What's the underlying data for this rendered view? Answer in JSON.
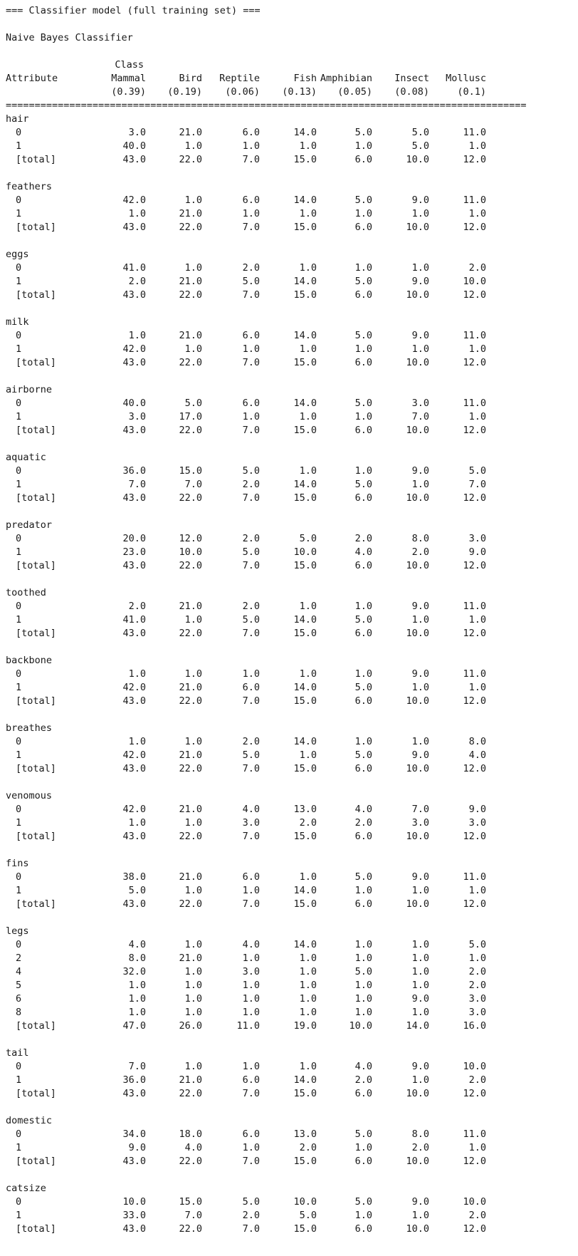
{
  "header": {
    "title": "=== Classifier model (full training set) ===",
    "model_name": "Naive Bayes Classifier",
    "class_label": "Class",
    "attribute_label": "Attribute",
    "separator": "=========================================================================================="
  },
  "classes": [
    {
      "name": "Mammal",
      "prior": "(0.39)"
    },
    {
      "name": "Bird",
      "prior": "(0.19)"
    },
    {
      "name": "Reptile",
      "prior": "(0.06)"
    },
    {
      "name": "Fish",
      "prior": "(0.13)"
    },
    {
      "name": "Amphibian",
      "prior": "(0.05)"
    },
    {
      "name": "Insect",
      "prior": "(0.08)"
    },
    {
      "name": "Mollusc",
      "prior": "(0.1)"
    }
  ],
  "attributes": [
    {
      "name": "hair",
      "rows": [
        {
          "label": "0",
          "values": [
            "3.0",
            "21.0",
            "6.0",
            "14.0",
            "5.0",
            "5.0",
            "11.0"
          ]
        },
        {
          "label": "1",
          "values": [
            "40.0",
            "1.0",
            "1.0",
            "1.0",
            "1.0",
            "5.0",
            "1.0"
          ]
        },
        {
          "label": "[total]",
          "values": [
            "43.0",
            "22.0",
            "7.0",
            "15.0",
            "6.0",
            "10.0",
            "12.0"
          ]
        }
      ]
    },
    {
      "name": "feathers",
      "rows": [
        {
          "label": "0",
          "values": [
            "42.0",
            "1.0",
            "6.0",
            "14.0",
            "5.0",
            "9.0",
            "11.0"
          ]
        },
        {
          "label": "1",
          "values": [
            "1.0",
            "21.0",
            "1.0",
            "1.0",
            "1.0",
            "1.0",
            "1.0"
          ]
        },
        {
          "label": "[total]",
          "values": [
            "43.0",
            "22.0",
            "7.0",
            "15.0",
            "6.0",
            "10.0",
            "12.0"
          ]
        }
      ]
    },
    {
      "name": "eggs",
      "rows": [
        {
          "label": "0",
          "values": [
            "41.0",
            "1.0",
            "2.0",
            "1.0",
            "1.0",
            "1.0",
            "2.0"
          ]
        },
        {
          "label": "1",
          "values": [
            "2.0",
            "21.0",
            "5.0",
            "14.0",
            "5.0",
            "9.0",
            "10.0"
          ]
        },
        {
          "label": "[total]",
          "values": [
            "43.0",
            "22.0",
            "7.0",
            "15.0",
            "6.0",
            "10.0",
            "12.0"
          ]
        }
      ]
    },
    {
      "name": "milk",
      "rows": [
        {
          "label": "0",
          "values": [
            "1.0",
            "21.0",
            "6.0",
            "14.0",
            "5.0",
            "9.0",
            "11.0"
          ]
        },
        {
          "label": "1",
          "values": [
            "42.0",
            "1.0",
            "1.0",
            "1.0",
            "1.0",
            "1.0",
            "1.0"
          ]
        },
        {
          "label": "[total]",
          "values": [
            "43.0",
            "22.0",
            "7.0",
            "15.0",
            "6.0",
            "10.0",
            "12.0"
          ]
        }
      ]
    },
    {
      "name": "airborne",
      "rows": [
        {
          "label": "0",
          "values": [
            "40.0",
            "5.0",
            "6.0",
            "14.0",
            "5.0",
            "3.0",
            "11.0"
          ]
        },
        {
          "label": "1",
          "values": [
            "3.0",
            "17.0",
            "1.0",
            "1.0",
            "1.0",
            "7.0",
            "1.0"
          ]
        },
        {
          "label": "[total]",
          "values": [
            "43.0",
            "22.0",
            "7.0",
            "15.0",
            "6.0",
            "10.0",
            "12.0"
          ]
        }
      ]
    },
    {
      "name": "aquatic",
      "rows": [
        {
          "label": "0",
          "values": [
            "36.0",
            "15.0",
            "5.0",
            "1.0",
            "1.0",
            "9.0",
            "5.0"
          ]
        },
        {
          "label": "1",
          "values": [
            "7.0",
            "7.0",
            "2.0",
            "14.0",
            "5.0",
            "1.0",
            "7.0"
          ]
        },
        {
          "label": "[total]",
          "values": [
            "43.0",
            "22.0",
            "7.0",
            "15.0",
            "6.0",
            "10.0",
            "12.0"
          ]
        }
      ]
    },
    {
      "name": "predator",
      "rows": [
        {
          "label": "0",
          "values": [
            "20.0",
            "12.0",
            "2.0",
            "5.0",
            "2.0",
            "8.0",
            "3.0"
          ]
        },
        {
          "label": "1",
          "values": [
            "23.0",
            "10.0",
            "5.0",
            "10.0",
            "4.0",
            "2.0",
            "9.0"
          ]
        },
        {
          "label": "[total]",
          "values": [
            "43.0",
            "22.0",
            "7.0",
            "15.0",
            "6.0",
            "10.0",
            "12.0"
          ]
        }
      ]
    },
    {
      "name": "toothed",
      "rows": [
        {
          "label": "0",
          "values": [
            "2.0",
            "21.0",
            "2.0",
            "1.0",
            "1.0",
            "9.0",
            "11.0"
          ]
        },
        {
          "label": "1",
          "values": [
            "41.0",
            "1.0",
            "5.0",
            "14.0",
            "5.0",
            "1.0",
            "1.0"
          ]
        },
        {
          "label": "[total]",
          "values": [
            "43.0",
            "22.0",
            "7.0",
            "15.0",
            "6.0",
            "10.0",
            "12.0"
          ]
        }
      ]
    },
    {
      "name": "backbone",
      "rows": [
        {
          "label": "0",
          "values": [
            "1.0",
            "1.0",
            "1.0",
            "1.0",
            "1.0",
            "9.0",
            "11.0"
          ]
        },
        {
          "label": "1",
          "values": [
            "42.0",
            "21.0",
            "6.0",
            "14.0",
            "5.0",
            "1.0",
            "1.0"
          ]
        },
        {
          "label": "[total]",
          "values": [
            "43.0",
            "22.0",
            "7.0",
            "15.0",
            "6.0",
            "10.0",
            "12.0"
          ]
        }
      ]
    },
    {
      "name": "breathes",
      "rows": [
        {
          "label": "0",
          "values": [
            "1.0",
            "1.0",
            "2.0",
            "14.0",
            "1.0",
            "1.0",
            "8.0"
          ]
        },
        {
          "label": "1",
          "values": [
            "42.0",
            "21.0",
            "5.0",
            "1.0",
            "5.0",
            "9.0",
            "4.0"
          ]
        },
        {
          "label": "[total]",
          "values": [
            "43.0",
            "22.0",
            "7.0",
            "15.0",
            "6.0",
            "10.0",
            "12.0"
          ]
        }
      ]
    },
    {
      "name": "venomous",
      "rows": [
        {
          "label": "0",
          "values": [
            "42.0",
            "21.0",
            "4.0",
            "13.0",
            "4.0",
            "7.0",
            "9.0"
          ]
        },
        {
          "label": "1",
          "values": [
            "1.0",
            "1.0",
            "3.0",
            "2.0",
            "2.0",
            "3.0",
            "3.0"
          ]
        },
        {
          "label": "[total]",
          "values": [
            "43.0",
            "22.0",
            "7.0",
            "15.0",
            "6.0",
            "10.0",
            "12.0"
          ]
        }
      ]
    },
    {
      "name": "fins",
      "rows": [
        {
          "label": "0",
          "values": [
            "38.0",
            "21.0",
            "6.0",
            "1.0",
            "5.0",
            "9.0",
            "11.0"
          ]
        },
        {
          "label": "1",
          "values": [
            "5.0",
            "1.0",
            "1.0",
            "14.0",
            "1.0",
            "1.0",
            "1.0"
          ]
        },
        {
          "label": "[total]",
          "values": [
            "43.0",
            "22.0",
            "7.0",
            "15.0",
            "6.0",
            "10.0",
            "12.0"
          ]
        }
      ]
    },
    {
      "name": "legs",
      "rows": [
        {
          "label": "0",
          "values": [
            "4.0",
            "1.0",
            "4.0",
            "14.0",
            "1.0",
            "1.0",
            "5.0"
          ]
        },
        {
          "label": "2",
          "values": [
            "8.0",
            "21.0",
            "1.0",
            "1.0",
            "1.0",
            "1.0",
            "1.0"
          ]
        },
        {
          "label": "4",
          "values": [
            "32.0",
            "1.0",
            "3.0",
            "1.0",
            "5.0",
            "1.0",
            "2.0"
          ]
        },
        {
          "label": "5",
          "values": [
            "1.0",
            "1.0",
            "1.0",
            "1.0",
            "1.0",
            "1.0",
            "2.0"
          ]
        },
        {
          "label": "6",
          "values": [
            "1.0",
            "1.0",
            "1.0",
            "1.0",
            "1.0",
            "9.0",
            "3.0"
          ]
        },
        {
          "label": "8",
          "values": [
            "1.0",
            "1.0",
            "1.0",
            "1.0",
            "1.0",
            "1.0",
            "3.0"
          ]
        },
        {
          "label": "[total]",
          "values": [
            "47.0",
            "26.0",
            "11.0",
            "19.0",
            "10.0",
            "14.0",
            "16.0"
          ]
        }
      ]
    },
    {
      "name": "tail",
      "rows": [
        {
          "label": "0",
          "values": [
            "7.0",
            "1.0",
            "1.0",
            "1.0",
            "4.0",
            "9.0",
            "10.0"
          ]
        },
        {
          "label": "1",
          "values": [
            "36.0",
            "21.0",
            "6.0",
            "14.0",
            "2.0",
            "1.0",
            "2.0"
          ]
        },
        {
          "label": "[total]",
          "values": [
            "43.0",
            "22.0",
            "7.0",
            "15.0",
            "6.0",
            "10.0",
            "12.0"
          ]
        }
      ]
    },
    {
      "name": "domestic",
      "rows": [
        {
          "label": "0",
          "values": [
            "34.0",
            "18.0",
            "6.0",
            "13.0",
            "5.0",
            "8.0",
            "11.0"
          ]
        },
        {
          "label": "1",
          "values": [
            "9.0",
            "4.0",
            "1.0",
            "2.0",
            "1.0",
            "2.0",
            "1.0"
          ]
        },
        {
          "label": "[total]",
          "values": [
            "43.0",
            "22.0",
            "7.0",
            "15.0",
            "6.0",
            "10.0",
            "12.0"
          ]
        }
      ]
    },
    {
      "name": "catsize",
      "rows": [
        {
          "label": "0",
          "values": [
            "10.0",
            "15.0",
            "5.0",
            "10.0",
            "5.0",
            "9.0",
            "10.0"
          ]
        },
        {
          "label": "1",
          "values": [
            "33.0",
            "7.0",
            "2.0",
            "5.0",
            "1.0",
            "1.0",
            "2.0"
          ]
        },
        {
          "label": "[total]",
          "values": [
            "43.0",
            "22.0",
            "7.0",
            "15.0",
            "6.0",
            "10.0",
            "12.0"
          ]
        }
      ]
    }
  ]
}
